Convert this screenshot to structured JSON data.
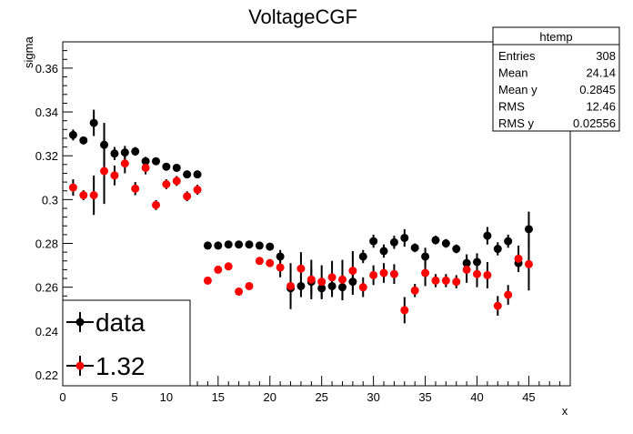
{
  "chart_data": {
    "type": "scatter",
    "title": "VoltageCGF",
    "xlabel": "x",
    "ylabel": "sigma",
    "xlim": [
      0,
      49
    ],
    "ylim": [
      0.215,
      0.372
    ],
    "x_ticks": [
      0,
      5,
      10,
      15,
      20,
      25,
      30,
      35,
      40,
      45
    ],
    "y_ticks": [
      0.22,
      0.24,
      0.26,
      0.28,
      0.3,
      0.32,
      0.34,
      0.36
    ],
    "x_tick_labels": [
      "0",
      "5",
      "10",
      "15",
      "20",
      "25",
      "30",
      "35",
      "40",
      "45"
    ],
    "y_tick_labels": [
      "0.22",
      "0.24",
      "0.26",
      "0.28",
      "0.3",
      "0.32",
      "0.34",
      "0.36"
    ],
    "grid": false,
    "legend_position": "bottom-left",
    "stats_box": {
      "title": "htemp",
      "rows": [
        {
          "label": "Entries",
          "value": "308"
        },
        {
          "label": "Mean",
          "value": "24.14"
        },
        {
          "label": "Mean y",
          "value": "0.2845"
        },
        {
          "label": "RMS",
          "value": "12.46"
        },
        {
          "label": "RMS y",
          "value": "0.02556"
        }
      ]
    },
    "series": [
      {
        "name": "data",
        "color": "#000000",
        "x": [
          1,
          2,
          3,
          4,
          5,
          6,
          7,
          8,
          9,
          10,
          11,
          12,
          13,
          14,
          15,
          16,
          17,
          18,
          19,
          20,
          21,
          22,
          23,
          24,
          25,
          26,
          27,
          28,
          29,
          30,
          31,
          32,
          33,
          34,
          35,
          36,
          37,
          38,
          39,
          40,
          41,
          42,
          43,
          44,
          45
        ],
        "y": [
          0.3295,
          0.327,
          0.335,
          0.325,
          0.321,
          0.3215,
          0.322,
          0.3175,
          0.3175,
          0.315,
          0.3145,
          0.3115,
          0.3115,
          0.279,
          0.279,
          0.2795,
          0.2795,
          0.2795,
          0.279,
          0.2785,
          0.274,
          0.2595,
          0.2605,
          0.2625,
          0.2595,
          0.2605,
          0.26,
          0.2625,
          0.274,
          0.281,
          0.2765,
          0.2805,
          0.2825,
          0.278,
          0.274,
          0.2815,
          0.28,
          0.2775,
          0.271,
          0.2715,
          0.2835,
          0.2775,
          0.281,
          0.271,
          0.2865
        ],
        "err": [
          0.0025,
          0.0015,
          0.006,
          0.01,
          0.003,
          0.003,
          0.002,
          0.002,
          0.0015,
          0.0015,
          0.0015,
          0.0015,
          0.0015,
          0.001,
          0.001,
          0.001,
          0.001,
          0.001,
          0.001,
          0.001,
          0.003,
          0.007,
          0.005,
          0.006,
          0.005,
          0.005,
          0.006,
          0.006,
          0.003,
          0.003,
          0.003,
          0.003,
          0.004,
          0.002,
          0.004,
          0.002,
          0.002,
          0.002,
          0.004,
          0.004,
          0.004,
          0.003,
          0.003,
          0.004,
          0.008
        ]
      },
      {
        "name": "1.32",
        "color": "#ff0000",
        "x": [
          1,
          2,
          3,
          4,
          5,
          6,
          7,
          8,
          9,
          10,
          11,
          12,
          13,
          14,
          15,
          16,
          17,
          18,
          19,
          20,
          21,
          22,
          23,
          24,
          25,
          26,
          27,
          28,
          29,
          30,
          31,
          32,
          33,
          34,
          35,
          36,
          37,
          38,
          39,
          40,
          41,
          42,
          43,
          44,
          45
        ],
        "y": [
          0.3055,
          0.302,
          0.302,
          0.313,
          0.311,
          0.3165,
          0.305,
          0.3145,
          0.2975,
          0.307,
          0.3085,
          0.3015,
          0.3045,
          0.263,
          0.268,
          0.2695,
          0.258,
          0.2605,
          0.272,
          0.271,
          0.269,
          0.2605,
          0.2685,
          0.2635,
          0.2625,
          0.2645,
          0.2635,
          0.2675,
          0.26,
          0.2655,
          0.2665,
          0.266,
          0.2495,
          0.2585,
          0.2665,
          0.263,
          0.263,
          0.2625,
          0.268,
          0.266,
          0.2655,
          0.2515,
          0.2565,
          0.273,
          0.2705
        ]
      }
    ]
  }
}
